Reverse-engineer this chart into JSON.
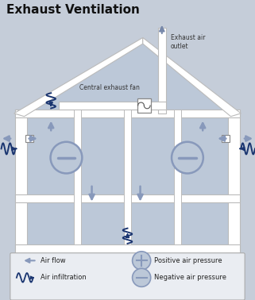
{
  "title": "Exhaust Ventilation",
  "bg_color": "#c5cdd9",
  "wall_color": "#ffffff",
  "wall_edge": "#bbbbbb",
  "inner_bg": "#bcc8d8",
  "arrow_gray": "#8899bb",
  "arrow_blue": "#1a3570",
  "text_dark": "#111111",
  "legend_bg": "#eaedf2",
  "exhaust_label": "Exhaust air\noutlet",
  "fan_label": "Central exhaust fan",
  "airflow_label": "Air flow",
  "infiltration_label": "Air infiltration",
  "pos_pressure_label": "Positive air pressure",
  "neg_pressure_label": "Negative air pressure",
  "xlim": [
    0,
    10
  ],
  "ylim": [
    0,
    11.8
  ]
}
